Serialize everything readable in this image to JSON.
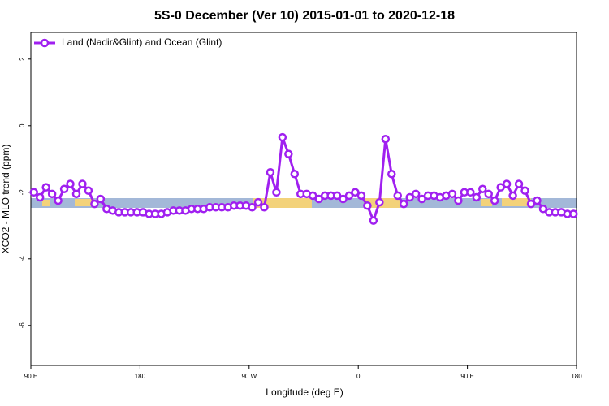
{
  "chart_data": {
    "type": "line",
    "title": "5S-0 December (Ver 10)   2015-01-01 to 2020-12-18",
    "x_label": "Longitude (deg E)",
    "y_label": "XCO2 - MLO trend (ppm)",
    "xlim": [
      90,
      540
    ],
    "ylim": [
      -7.2,
      2.8
    ],
    "xticks": [
      {
        "value": 90,
        "label": "90 E"
      },
      180,
      {
        "value": 270,
        "label": "90 W"
      },
      {
        "value": 360,
        "label": "0"
      },
      {
        "value": 450,
        "label": "90 E"
      },
      {
        "value": 540,
        "label": "180"
      }
    ],
    "yticks": [
      2,
      0,
      -2,
      -4,
      -6
    ],
    "legend": "top-left",
    "x": [
      92.5,
      97.5,
      102.5,
      107.5,
      112.5,
      117.5,
      122.5,
      127.5,
      132.5,
      137.5,
      142.5,
      147.5,
      152.5,
      157.5,
      162.5,
      167.5,
      172.5,
      177.5,
      182.5,
      187.5,
      192.5,
      197.5,
      202.5,
      207.5,
      212.5,
      217.5,
      222.5,
      227.5,
      232.5,
      237.5,
      242.5,
      247.5,
      252.5,
      257.5,
      262.5,
      267.5,
      272.5,
      277.5,
      282.5,
      287.5,
      292.5,
      297.5,
      302.5,
      307.5,
      312.5,
      317.5,
      322.5,
      327.5,
      332.5,
      337.5,
      342.5,
      347.5,
      352.5,
      357.5,
      362.5,
      367.5,
      372.5,
      377.5,
      382.5,
      387.5,
      392.5,
      397.5,
      402.5,
      407.5,
      412.5,
      417.5,
      422.5,
      427.5,
      432.5,
      437.5,
      442.5,
      447.5,
      452.5,
      457.5,
      462.5,
      467.5,
      472.5,
      477.5,
      482.5,
      487.5,
      492.5,
      497.5,
      502.5,
      507.5,
      512.5,
      517.5,
      522.5,
      527.5,
      532.5,
      537.5
    ],
    "series": [
      {
        "name": "Land (Nadir&Glint) and Ocean (Glint)",
        "color": "#a020f0",
        "values": [
          -2.0,
          -2.15,
          -1.85,
          -2.05,
          -2.25,
          -1.9,
          -1.75,
          -2.05,
          -1.75,
          -1.95,
          -2.35,
          -2.2,
          -2.5,
          -2.55,
          -2.6,
          -2.6,
          -2.6,
          -2.6,
          -2.6,
          -2.65,
          -2.65,
          -2.65,
          -2.6,
          -2.55,
          -2.55,
          -2.55,
          -2.5,
          -2.5,
          -2.5,
          -2.45,
          -2.45,
          -2.45,
          -2.45,
          -2.4,
          -2.4,
          -2.4,
          -2.45,
          -2.3,
          -2.45,
          -1.4,
          -2.0,
          -0.35,
          -0.85,
          -1.45,
          -2.05,
          -2.05,
          -2.1,
          -2.2,
          -2.1,
          -2.1,
          -2.1,
          -2.2,
          -2.1,
          -2.0,
          -2.1,
          -2.4,
          -2.85,
          -2.3,
          -0.4,
          -1.45,
          -2.1,
          -2.35,
          -2.15,
          -2.05,
          -2.2,
          -2.1,
          -2.1,
          -2.15,
          -2.1,
          -2.05,
          -2.25,
          -2.0,
          -2.0,
          -2.15,
          -1.9,
          -2.05,
          -2.25,
          -1.85,
          -1.75,
          -2.1,
          -1.75,
          -1.95,
          -2.35,
          -2.25,
          -2.5,
          -2.6,
          -2.6,
          -2.6,
          -2.65,
          -2.65
        ]
      }
    ]
  }
}
